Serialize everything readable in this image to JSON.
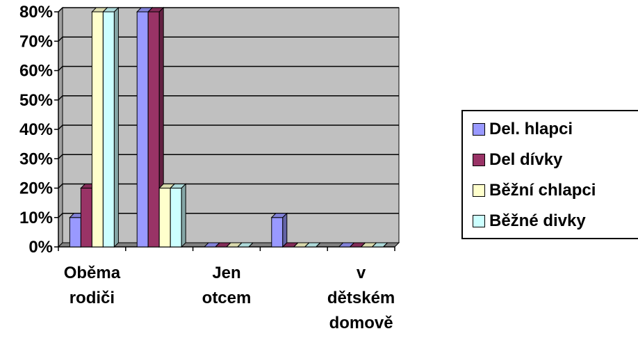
{
  "colors": {
    "plot_background": "#c0c0c0",
    "wall_side": "#a0a0a0",
    "floor": "#808080",
    "grid": "#000000"
  },
  "chart_data": {
    "type": "bar",
    "style": "3d-clustered-column",
    "categories": [
      [
        "Oběma",
        "rodiči"
      ],
      [
        "",
        ""
      ],
      [
        "Jen",
        "otcem"
      ],
      [
        "",
        ""
      ],
      [
        "v",
        "dětském",
        "domově"
      ]
    ],
    "y_tick_labels": [
      "0%",
      "10%",
      "20%",
      "30%",
      "40%",
      "50%",
      "60%",
      "70%",
      "80%"
    ],
    "ylim": [
      0,
      80
    ],
    "grid": true,
    "legend_position": "right",
    "series": [
      {
        "name": "Del. hlapci",
        "color": "#9999ff",
        "values": [
          10,
          80,
          0,
          10,
          0
        ]
      },
      {
        "name": "Del dívky",
        "color": "#993366",
        "values": [
          20,
          80,
          0,
          0,
          0
        ]
      },
      {
        "name": "Běžní chlapci",
        "color": "#ffffcc",
        "values": [
          80,
          20,
          0,
          0,
          0
        ]
      },
      {
        "name": "Běžné divky",
        "color": "#ccffff",
        "values": [
          80,
          20,
          0,
          0,
          0
        ]
      }
    ]
  }
}
